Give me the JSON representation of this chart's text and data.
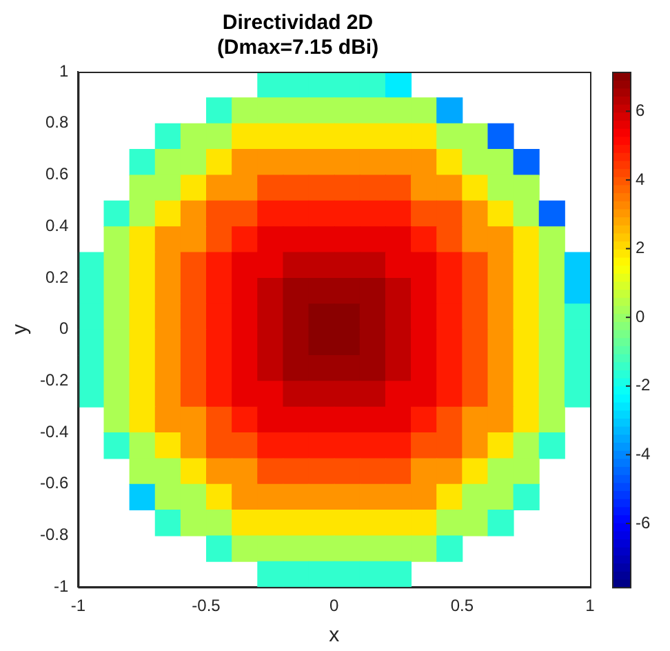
{
  "chart_data": {
    "type": "heatmap",
    "title": "Directividad 2D",
    "subtitle": "(Dmax=7.15 dBi)",
    "xlabel": "x",
    "ylabel": "y",
    "x": [
      -0.95,
      -0.85,
      -0.75,
      -0.65,
      -0.55,
      -0.45,
      -0.35,
      -0.25,
      -0.15,
      -0.05,
      0.05,
      0.15,
      0.25,
      0.35,
      0.45,
      0.55,
      0.65,
      0.75,
      0.85,
      0.95
    ],
    "y": [
      0.95,
      0.85,
      0.75,
      0.65,
      0.55,
      0.45,
      0.35,
      0.25,
      0.15,
      0.05,
      -0.05,
      -0.15,
      -0.25,
      -0.35,
      -0.45,
      -0.55,
      -0.65,
      -0.75,
      -0.85,
      -0.95
    ],
    "xlim": [
      -1,
      1
    ],
    "xticks": [
      -1,
      -0.5,
      0,
      0.5,
      1
    ],
    "ylim": [
      -1,
      1
    ],
    "yticks": [
      -1,
      -0.8,
      -0.6,
      -0.4,
      -0.2,
      0,
      0.2,
      0.4,
      0.6,
      0.8,
      1
    ],
    "clim": [
      -7.85,
      7.15
    ],
    "cticks": [
      -6,
      -4,
      -2,
      0,
      2,
      4,
      6
    ],
    "cells": [
      [
        null,
        null,
        null,
        null,
        null,
        null,
        null,
        -1.5,
        -1.5,
        -1.5,
        -1.5,
        -1.5,
        -2.5,
        null,
        null,
        null,
        null,
        null,
        null,
        null
      ],
      [
        null,
        null,
        null,
        null,
        null,
        -1.5,
        0.3,
        0.3,
        0.3,
        0.3,
        0.3,
        0.3,
        0.3,
        0.3,
        -3.5,
        null,
        null,
        null,
        null,
        null
      ],
      [
        null,
        null,
        null,
        -1.5,
        0.3,
        0.3,
        1.9,
        1.9,
        1.9,
        1.9,
        1.9,
        1.9,
        1.9,
        1.9,
        0.3,
        0.3,
        -4.5,
        null,
        null,
        null
      ],
      [
        null,
        null,
        -1.5,
        0.3,
        0.3,
        1.9,
        3.1,
        3.1,
        3.1,
        3.1,
        3.1,
        3.1,
        3.1,
        3.1,
        1.9,
        0.3,
        0.3,
        -4.5,
        null,
        null
      ],
      [
        null,
        null,
        0.3,
        0.3,
        1.9,
        3.1,
        3.1,
        4.1,
        4.1,
        4.1,
        4.1,
        4.1,
        4.1,
        3.1,
        3.1,
        1.9,
        0.3,
        0.3,
        null,
        null
      ],
      [
        null,
        -1.5,
        0.3,
        1.9,
        3.1,
        4.1,
        4.1,
        4.9,
        4.9,
        4.9,
        4.9,
        4.9,
        4.9,
        4.1,
        4.1,
        3.1,
        1.9,
        0.3,
        -4.5,
        null
      ],
      [
        null,
        0.3,
        1.9,
        3.1,
        3.1,
        4.1,
        4.9,
        5.6,
        5.6,
        5.6,
        5.6,
        5.6,
        5.6,
        4.9,
        4.1,
        3.1,
        3.1,
        1.9,
        0.3,
        null
      ],
      [
        -1.5,
        0.3,
        1.9,
        3.1,
        4.1,
        4.9,
        5.6,
        5.6,
        6.2,
        6.2,
        6.2,
        6.2,
        5.6,
        5.6,
        4.9,
        4.1,
        3.1,
        1.9,
        0.3,
        -3.0
      ],
      [
        -1.5,
        0.3,
        1.9,
        3.1,
        4.1,
        4.9,
        5.6,
        6.2,
        6.7,
        6.7,
        6.7,
        6.7,
        6.2,
        5.6,
        4.9,
        4.1,
        3.1,
        1.9,
        0.3,
        -3.0
      ],
      [
        -1.5,
        0.3,
        1.9,
        3.1,
        4.1,
        4.9,
        5.6,
        6.2,
        6.7,
        7.0,
        7.0,
        6.7,
        6.2,
        5.6,
        4.9,
        4.1,
        3.1,
        1.9,
        0.3,
        -1.5
      ],
      [
        -1.5,
        0.3,
        1.9,
        3.1,
        4.1,
        4.9,
        5.6,
        6.2,
        6.7,
        7.0,
        7.0,
        6.7,
        6.2,
        5.6,
        4.9,
        4.1,
        3.1,
        1.9,
        0.3,
        -1.5
      ],
      [
        -1.5,
        0.3,
        1.9,
        3.1,
        4.1,
        4.9,
        5.6,
        6.2,
        6.7,
        6.7,
        6.7,
        6.7,
        6.2,
        5.6,
        4.9,
        4.1,
        3.1,
        1.9,
        0.3,
        -1.5
      ],
      [
        -1.5,
        0.3,
        1.9,
        3.1,
        4.1,
        4.9,
        5.6,
        5.6,
        6.2,
        6.2,
        6.2,
        6.2,
        5.6,
        5.6,
        4.9,
        4.1,
        3.1,
        1.9,
        0.3,
        -1.5
      ],
      [
        null,
        0.3,
        1.9,
        3.1,
        3.1,
        4.1,
        4.9,
        5.6,
        5.6,
        5.6,
        5.6,
        5.6,
        5.6,
        4.9,
        4.1,
        3.1,
        3.1,
        1.9,
        0.3,
        null
      ],
      [
        null,
        -1.5,
        0.3,
        1.9,
        3.1,
        4.1,
        4.1,
        4.9,
        4.9,
        4.9,
        4.9,
        4.9,
        4.9,
        4.1,
        4.1,
        3.1,
        1.9,
        0.3,
        -1.5,
        null
      ],
      [
        null,
        null,
        0.3,
        0.3,
        1.9,
        3.1,
        3.1,
        4.1,
        4.1,
        4.1,
        4.1,
        4.1,
        4.1,
        3.1,
        3.1,
        1.9,
        0.3,
        0.3,
        null,
        null
      ],
      [
        null,
        null,
        -3.0,
        0.3,
        0.3,
        1.9,
        3.1,
        3.1,
        3.1,
        3.1,
        3.1,
        3.1,
        3.1,
        3.1,
        1.9,
        0.3,
        0.3,
        -1.5,
        null,
        null
      ],
      [
        null,
        null,
        null,
        -1.5,
        0.3,
        0.3,
        1.9,
        1.9,
        1.9,
        1.9,
        1.9,
        1.9,
        1.9,
        1.9,
        0.3,
        0.3,
        -1.5,
        null,
        null,
        null
      ],
      [
        null,
        null,
        null,
        null,
        null,
        -1.5,
        0.3,
        0.3,
        0.3,
        0.3,
        0.3,
        0.3,
        0.3,
        0.3,
        -1.5,
        null,
        null,
        null,
        null,
        null
      ],
      [
        null,
        null,
        null,
        null,
        null,
        null,
        null,
        -1.5,
        -1.5,
        -1.5,
        -1.5,
        -1.5,
        -1.5,
        null,
        null,
        null,
        null,
        null,
        null,
        null
      ]
    ]
  }
}
